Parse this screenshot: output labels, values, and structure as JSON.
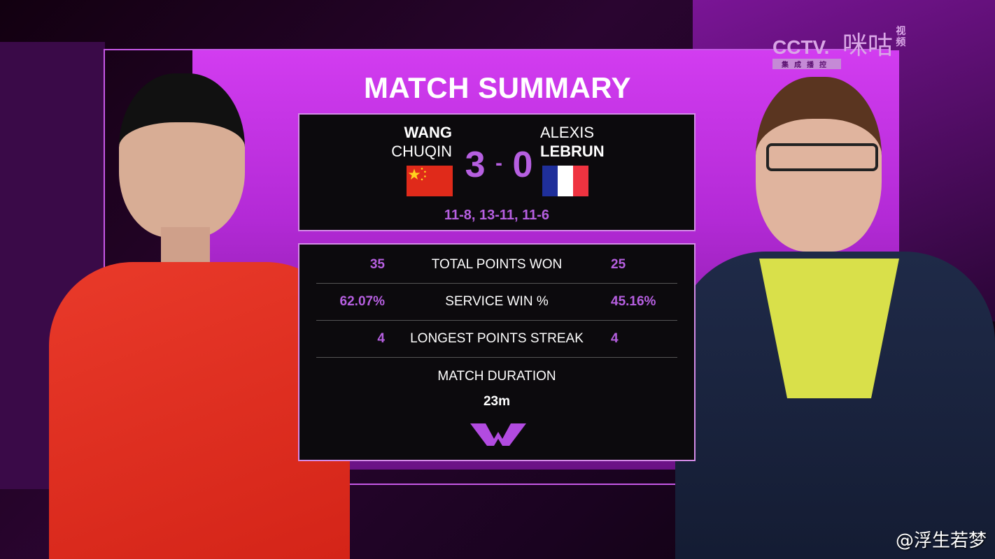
{
  "broadcaster": {
    "cctv": "CCTV.",
    "cctv_sub": "集成播控",
    "migu": "咪咕",
    "migu_sub": "视频"
  },
  "title": "MATCH SUMMARY",
  "player1": {
    "first": "WANG",
    "last": "CHUQIN",
    "score": "3"
  },
  "player2": {
    "first": "ALEXIS",
    "last": "LEBRUN",
    "score": "0"
  },
  "score_separator": "-",
  "games": "11-8, 13-11, 11-6",
  "stats": [
    {
      "label": "TOTAL POINTS WON",
      "p1": "35",
      "p2": "25"
    },
    {
      "label": "SERVICE WIN %",
      "p1": "62.07%",
      "p2": "45.16%"
    },
    {
      "label": "LONGEST POINTS STREAK",
      "p1": "4",
      "p2": "4"
    }
  ],
  "duration": {
    "label": "MATCH DURATION",
    "value": "23m"
  },
  "colors": {
    "accent": "#b65fe0",
    "panel": "#c935ea",
    "box": "#0c0a0d"
  },
  "watermark": "@浮生若梦"
}
